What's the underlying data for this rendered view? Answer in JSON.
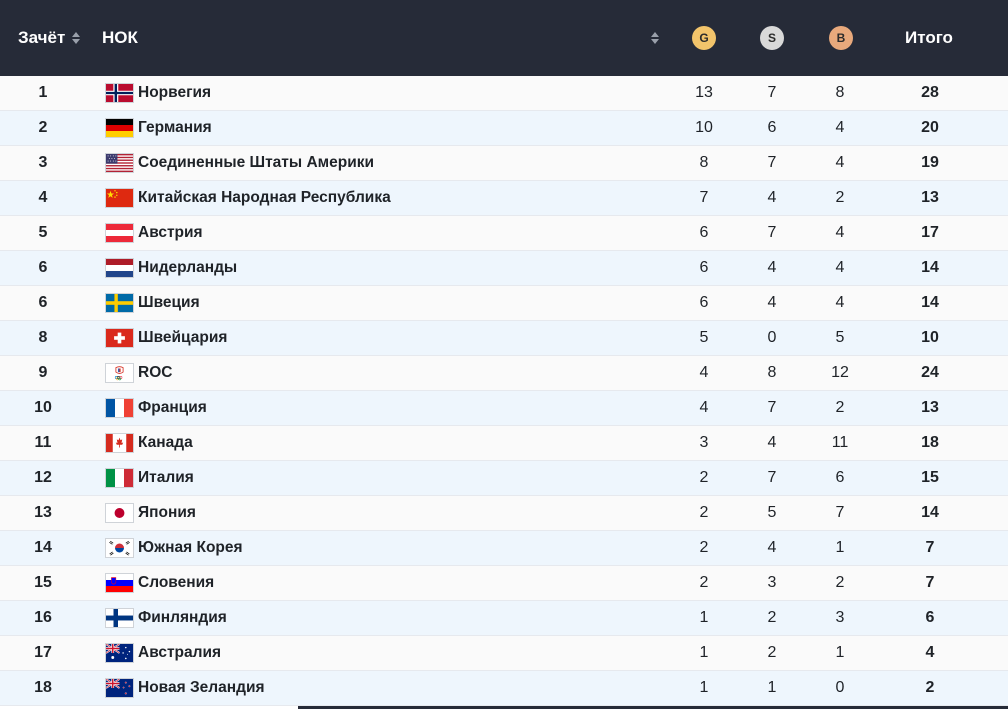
{
  "header": {
    "rank_label": "Зачёт",
    "noc_label": "НОК",
    "gold_label": "G",
    "silver_label": "S",
    "bronze_label": "B",
    "total_label": "Итого",
    "gold_color": "#f2c46b",
    "silver_color": "#d9d9d9",
    "bronze_color": "#e8a97c"
  },
  "rows": [
    {
      "rank": "1",
      "country": "Норвегия",
      "flag": "flag-norway",
      "gold": "13",
      "silver": "7",
      "bronze": "8",
      "total": "28"
    },
    {
      "rank": "2",
      "country": "Германия",
      "flag": "flag-germany",
      "gold": "10",
      "silver": "6",
      "bronze": "4",
      "total": "20"
    },
    {
      "rank": "3",
      "country": "Соединенные Штаты Америки",
      "flag": "flag-usa",
      "gold": "8",
      "silver": "7",
      "bronze": "4",
      "total": "19"
    },
    {
      "rank": "4",
      "country": "Китайская Народная Республика",
      "flag": "flag-china",
      "gold": "7",
      "silver": "4",
      "bronze": "2",
      "total": "13"
    },
    {
      "rank": "5",
      "country": "Австрия",
      "flag": "flag-austria",
      "gold": "6",
      "silver": "7",
      "bronze": "4",
      "total": "17"
    },
    {
      "rank": "6",
      "country": "Нидерланды",
      "flag": "flag-netherlands",
      "gold": "6",
      "silver": "4",
      "bronze": "4",
      "total": "14"
    },
    {
      "rank": "6",
      "country": "Швеция",
      "flag": "flag-sweden",
      "gold": "6",
      "silver": "4",
      "bronze": "4",
      "total": "14"
    },
    {
      "rank": "8",
      "country": "Швейцария",
      "flag": "flag-switzerland",
      "gold": "5",
      "silver": "0",
      "bronze": "5",
      "total": "10"
    },
    {
      "rank": "9",
      "country": "ROC",
      "flag": "flag-roc",
      "gold": "4",
      "silver": "8",
      "bronze": "12",
      "total": "24"
    },
    {
      "rank": "10",
      "country": "Франция",
      "flag": "flag-france",
      "gold": "4",
      "silver": "7",
      "bronze": "2",
      "total": "13"
    },
    {
      "rank": "11",
      "country": "Канада",
      "flag": "flag-canada",
      "gold": "3",
      "silver": "4",
      "bronze": "11",
      "total": "18"
    },
    {
      "rank": "12",
      "country": "Италия",
      "flag": "flag-italy",
      "gold": "2",
      "silver": "7",
      "bronze": "6",
      "total": "15"
    },
    {
      "rank": "13",
      "country": "Япония",
      "flag": "flag-japan",
      "gold": "2",
      "silver": "5",
      "bronze": "7",
      "total": "14"
    },
    {
      "rank": "14",
      "country": "Южная Корея",
      "flag": "flag-south-korea",
      "gold": "2",
      "silver": "4",
      "bronze": "1",
      "total": "7"
    },
    {
      "rank": "15",
      "country": "Словения",
      "flag": "flag-slovenia",
      "gold": "2",
      "silver": "3",
      "bronze": "2",
      "total": "7"
    },
    {
      "rank": "16",
      "country": "Финляндия",
      "flag": "flag-finland",
      "gold": "1",
      "silver": "2",
      "bronze": "3",
      "total": "6"
    },
    {
      "rank": "17",
      "country": "Австралия",
      "flag": "flag-australia",
      "gold": "1",
      "silver": "2",
      "bronze": "1",
      "total": "4"
    },
    {
      "rank": "18",
      "country": "Новая Зеландия",
      "flag": "flag-new-zealand",
      "gold": "1",
      "silver": "1",
      "bronze": "0",
      "total": "2"
    }
  ]
}
